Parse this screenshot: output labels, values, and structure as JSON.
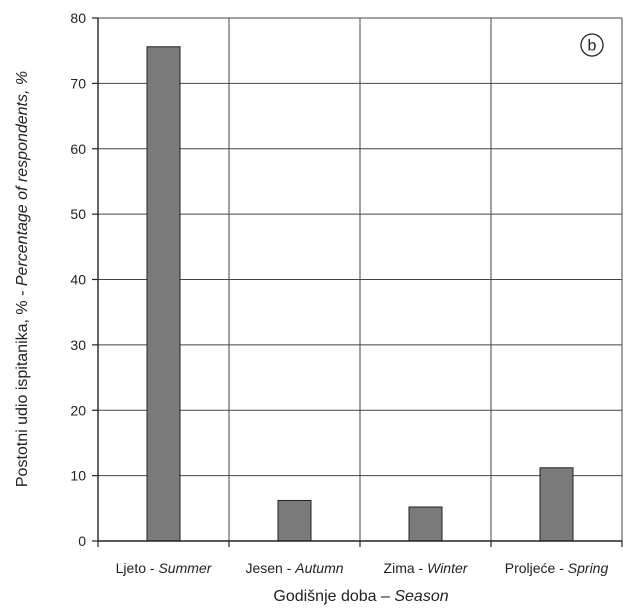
{
  "chart_data": {
    "type": "bar",
    "categories": [
      {
        "main": "Ljeto - ",
        "italic": "Summer"
      },
      {
        "main": "Jesen - ",
        "italic": "Autumn"
      },
      {
        "main": "Zima - ",
        "italic": "Winter"
      },
      {
        "main": "Proljeće - ",
        "italic": "Spring"
      }
    ],
    "values": [
      75.6,
      6.2,
      5.2,
      11.2
    ],
    "ylim": [
      0,
      80
    ],
    "yticks": [
      0,
      10,
      20,
      30,
      40,
      50,
      60,
      70,
      80
    ],
    "ylabel": {
      "main": "Postotni udio ispitanika, % - ",
      "italic": "Percentage of respondents, %"
    },
    "xlabel": {
      "main": "Godišnje doba – ",
      "italic": "Season"
    },
    "panel_label": "b",
    "grid": "vertical category separators",
    "colors": {
      "bar": "#7a7a7a",
      "bar_edge": "#222222",
      "axis": "#222222",
      "grid": "#444444"
    }
  }
}
